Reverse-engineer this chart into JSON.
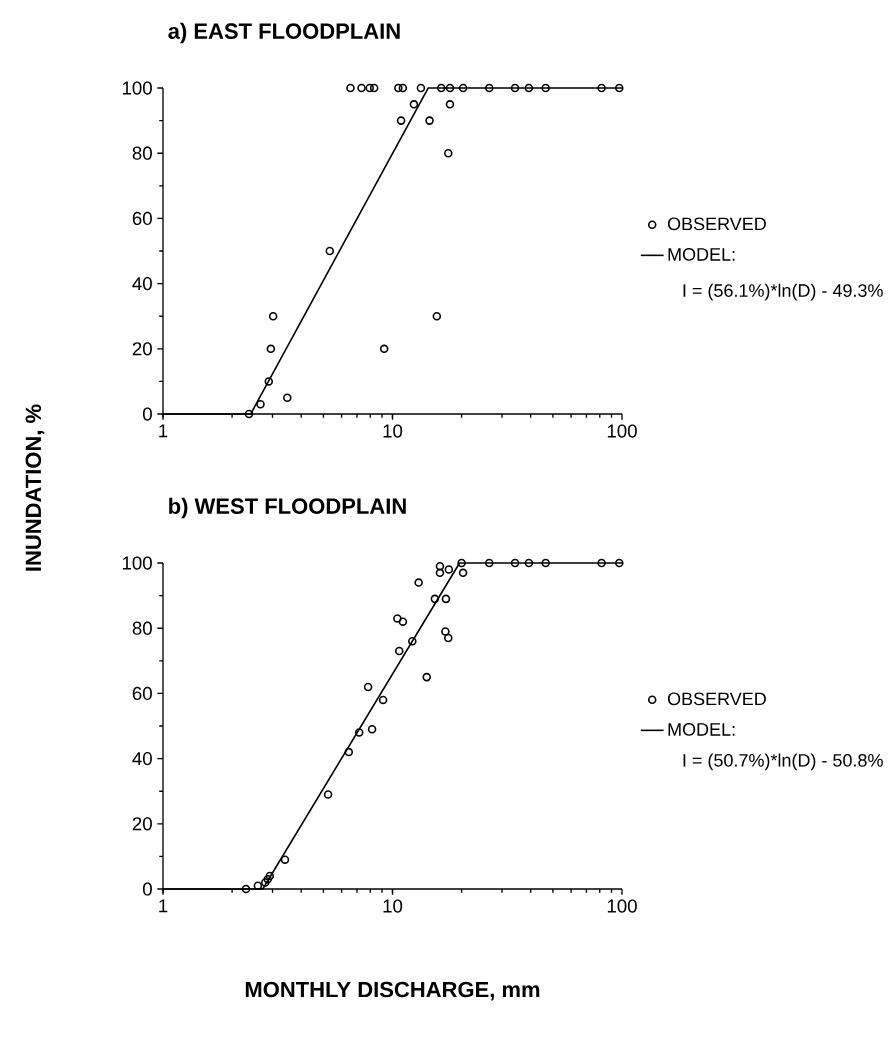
{
  "chart_data": [
    {
      "type": "scatter",
      "title": "a) EAST FLOODPLAIN",
      "ylabel": "INUNDATION, %",
      "log": "x",
      "xlim": [
        1,
        100
      ],
      "xticks": [
        1,
        10,
        100
      ],
      "ylim": [
        0,
        100
      ],
      "yticks": [
        0,
        20,
        40,
        60,
        80,
        100
      ],
      "legend": "right",
      "annotations": [
        "I = (56.1%)*ln(D) - 49.3%"
      ],
      "series": [
        {
          "name": "OBSERVED",
          "marker": "circle",
          "color": "#000000",
          "x": [
            6.56,
            7.33,
            7.96,
            8.32,
            10.6,
            11.1,
            13.3,
            16.3,
            17.8,
            20.3,
            26.4,
            34.2,
            39.3,
            46.5,
            81.5,
            97.3,
            10.9,
            12.4,
            14.5,
            17.8,
            17.5,
            5.33,
            3.02,
            2.95,
            2.89,
            2.66,
            3.48,
            2.37,
            9.2,
            15.6
          ],
          "values": [
            100,
            100,
            100,
            100,
            100,
            100,
            100,
            100,
            100,
            100,
            100,
            100,
            100,
            100,
            100,
            100,
            90,
            95,
            90,
            95,
            80,
            50,
            30,
            20,
            10,
            3,
            5,
            0,
            20,
            30
          ]
        },
        {
          "name": "MODEL:",
          "type": "line",
          "color": "#000000",
          "x": [
            1,
            2.41,
            14.3,
            100
          ],
          "values": [
            0,
            0,
            100,
            100
          ]
        }
      ]
    },
    {
      "type": "scatter",
      "title": "b) WEST FLOODPLAIN",
      "xlabel": "MONTHLY DISCHARGE, mm",
      "log": "x",
      "xlim": [
        1,
        100
      ],
      "xticks": [
        1,
        10,
        100
      ],
      "ylim": [
        0,
        100
      ],
      "yticks": [
        0,
        20,
        40,
        60,
        80,
        100
      ],
      "legend": "right",
      "annotations": [
        "I = (50.7%)*ln(D) - 50.8%"
      ],
      "series": [
        {
          "name": "OBSERVED",
          "marker": "circle",
          "color": "#000000",
          "x": [
            16.1,
            17.6,
            16.1,
            20.0,
            20.3,
            26.4,
            34.2,
            39.3,
            46.5,
            81.5,
            97.3,
            13.0,
            15.3,
            17.1,
            10.5,
            11.1,
            12.2,
            10.7,
            17.0,
            17.5,
            14.1,
            7.83,
            9.1,
            7.16,
            8.15,
            6.45,
            5.24,
            2.3,
            2.59,
            2.79,
            2.92,
            2.86,
            3.4
          ],
          "values": [
            99,
            98,
            97,
            100,
            97,
            100,
            100,
            100,
            100,
            100,
            100,
            94,
            89,
            89,
            83,
            82,
            76,
            73,
            79,
            77,
            65,
            62,
            58,
            48,
            49,
            42,
            29,
            0,
            1,
            2,
            4,
            3,
            9
          ]
        },
        {
          "name": "MODEL:",
          "type": "line",
          "color": "#000000",
          "x": [
            1,
            2.72,
            19.6,
            100
          ],
          "values": [
            0,
            0,
            100,
            100
          ]
        }
      ]
    }
  ]
}
